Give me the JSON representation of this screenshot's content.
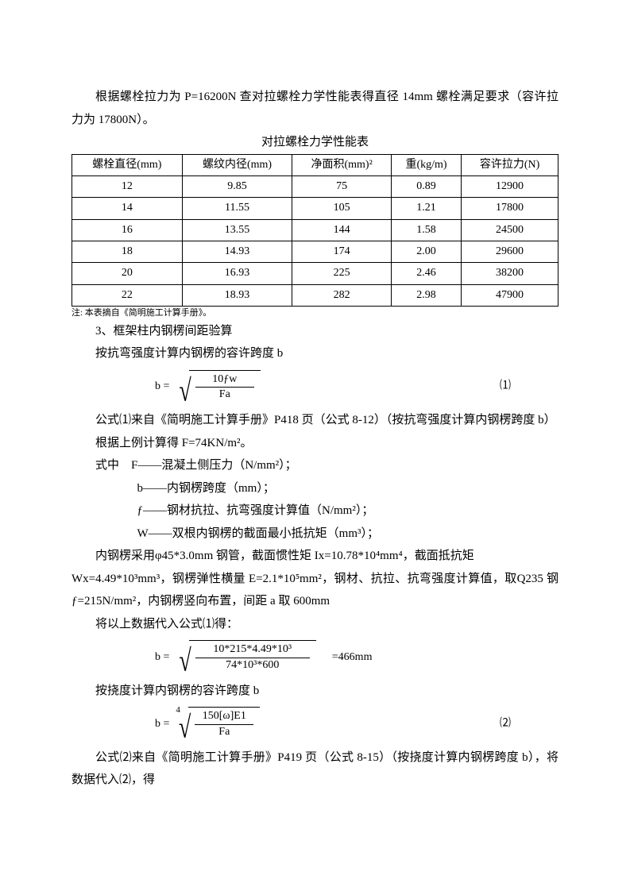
{
  "intro": {
    "p1": "根据螺栓拉力为 P=16200N 查对拉螺栓力学性能表得直径 14mm 螺栓满足要求（容许拉力为 17800N）。",
    "table_title": "对拉螺栓力学性能表"
  },
  "table": {
    "headers": [
      "螺栓直径(mm)",
      "螺纹内径(mm)",
      "净面积(mm)²",
      "重(kg/m)",
      "容许拉力(N)"
    ],
    "rows": [
      [
        "12",
        "9.85",
        "75",
        "0.89",
        "12900"
      ],
      [
        "14",
        "11.55",
        "105",
        "1.21",
        "17800"
      ],
      [
        "16",
        "13.55",
        "144",
        "1.58",
        "24500"
      ],
      [
        "18",
        "14.93",
        "174",
        "2.00",
        "29600"
      ],
      [
        "20",
        "16.93",
        "225",
        "2.46",
        "38200"
      ],
      [
        "22",
        "18.93",
        "282",
        "2.98",
        "47900"
      ]
    ],
    "note": "注: 本表摘自《简明施工计算手册》。"
  },
  "section3": {
    "title": "3、框架柱内钢楞间距验算",
    "p1": "按抗弯强度计算内钢楞的容许跨度 b",
    "formula1": {
      "lhs": "b =",
      "num": "10ƒw",
      "den": "Fa",
      "eqnum": "⑴"
    },
    "p2": "公式⑴来自《简明施工计算手册》P418 页（公式 8-12）（按抗弯强度计算内钢楞跨度 b）",
    "p3": "根据上例计算得 F=74KN/m²。",
    "vars_intro": "式中　F——混凝土侧压力（N/mm²）；",
    "vars": [
      "b——内钢楞跨度（mm）；",
      "ƒ——钢材抗拉、抗弯强度计算值（N/mm²）；",
      "W——双根内钢楞的截面最小抵抗矩（mm³）；"
    ],
    "p4a": "内钢楞采用φ45*3.0mm 钢管，截面惯性矩 Ix=10.78*10⁴mm⁴，截面抵抗矩",
    "p4b": "Wx=4.49*10³mm³，钢楞弹性横量 E=2.1*10⁵mm²，钢材、抗拉、抗弯强度计算值，取Q235 钢ƒ=215N/mm²，内钢楞竖向布置，间距 a 取 600mm",
    "p5": "将以上数据代入公式⑴得：",
    "formula2": {
      "lhs": "b =",
      "num": "10*215*4.49*10³",
      "den": "74*10³*600",
      "result": "=466mm"
    },
    "p6": "按挠度计算内钢楞的容许跨度 b",
    "formula3": {
      "lhs": "b =",
      "index": "4",
      "num": "150[ω]E1",
      "den": "Fa",
      "eqnum": "⑵"
    },
    "p7": "公式⑵来自《简明施工计算手册》P419 页（公式 8-15）（按挠度计算内钢楞跨度 b），将数据代入⑵，得"
  }
}
